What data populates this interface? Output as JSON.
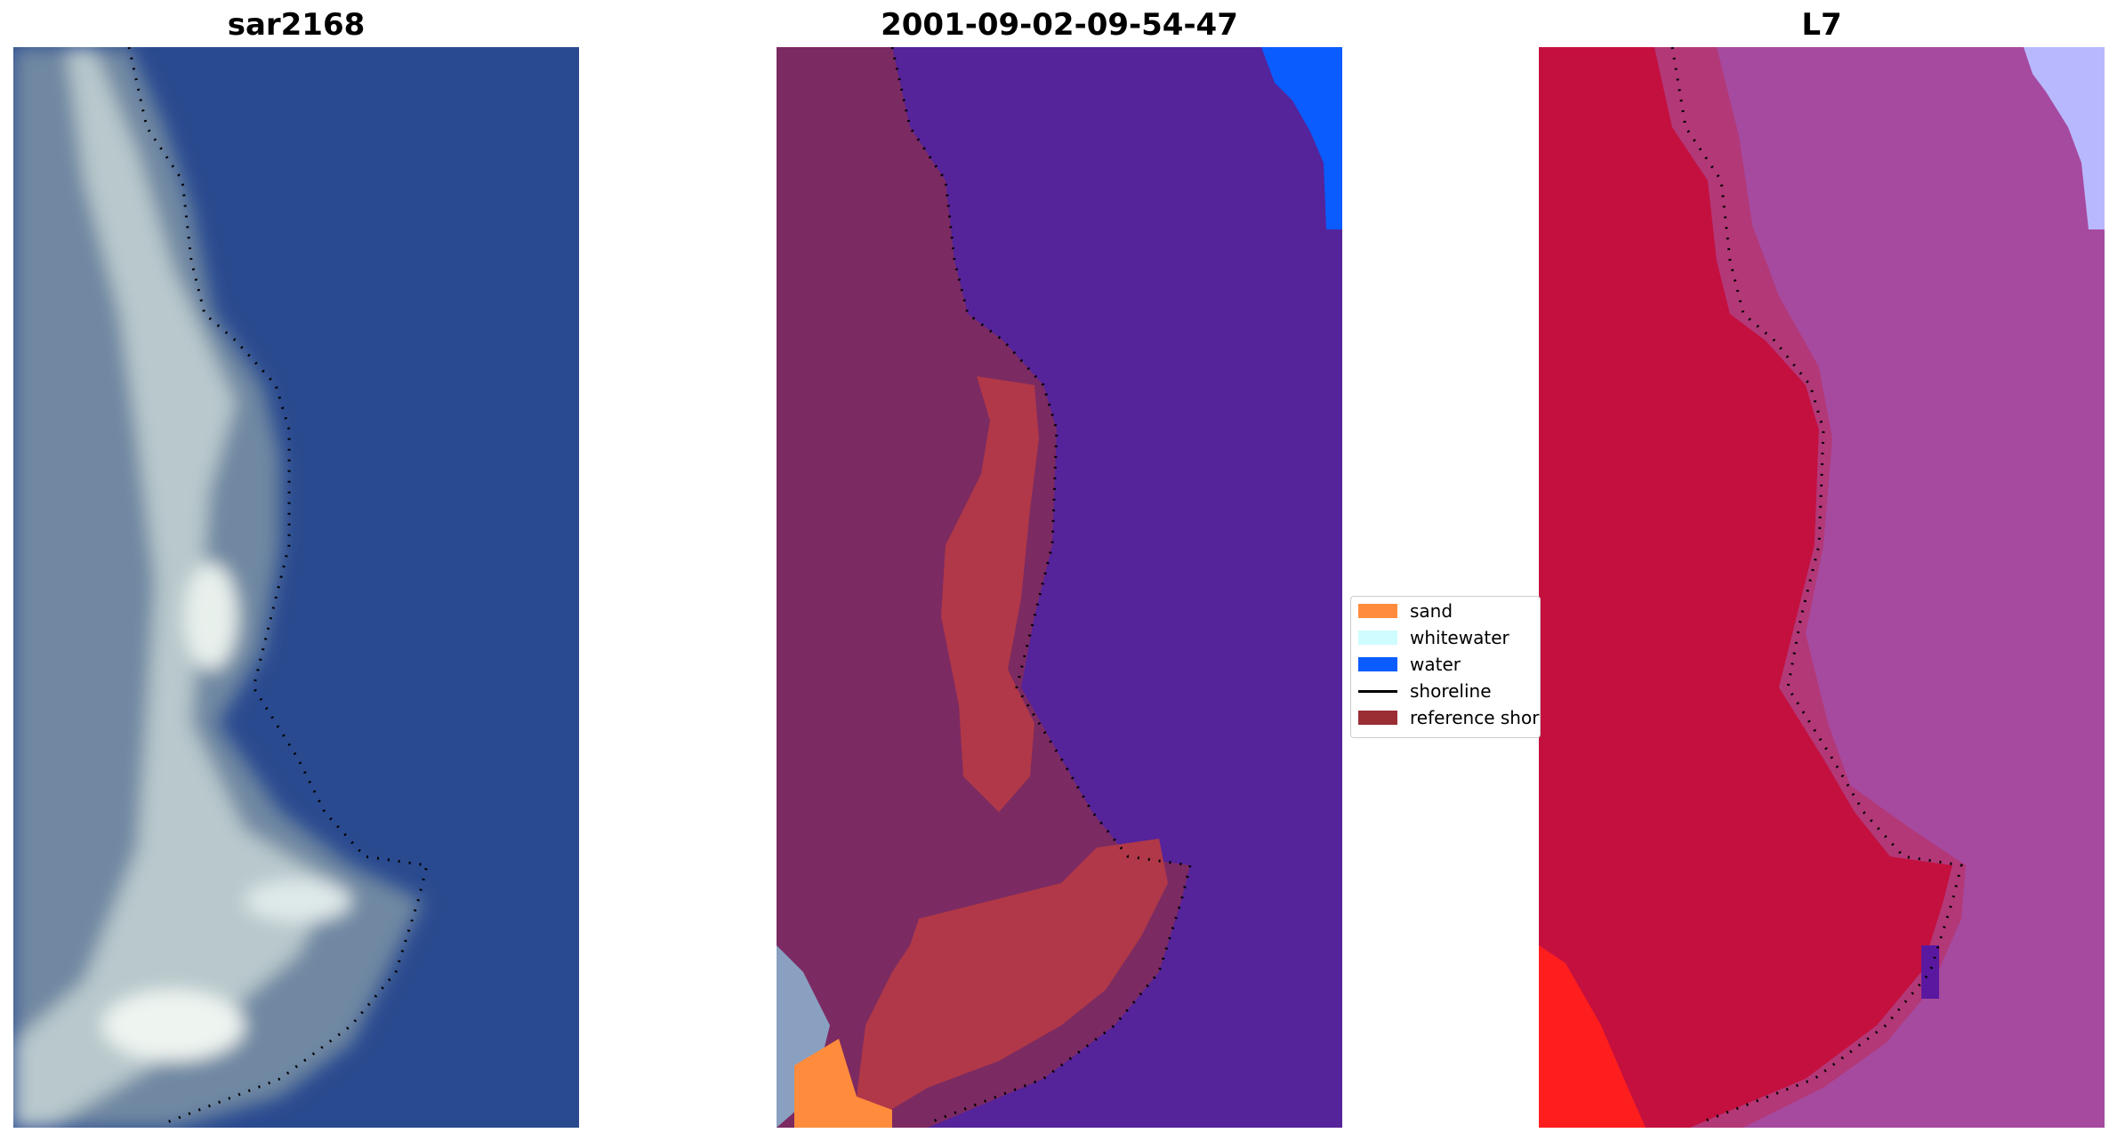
{
  "panels": [
    {
      "title": "sar2168",
      "colors": {
        "land": "#6f88a2",
        "bright": "#dfe9ea",
        "water": "#2a4a8f",
        "shoreline_dots": "#000000"
      }
    },
    {
      "title": "2001-09-02-09-54-47",
      "colors": {
        "land": "#7c2a62",
        "reference": "#b03848",
        "water": "#55239a",
        "sand": "#ff8c3c",
        "water_class": "#0a5cff",
        "gray": "#8aa0c0",
        "shoreline_dots": "#000000"
      }
    },
    {
      "title": "L7",
      "colors": {
        "land": "#c4103e",
        "offshore": "#a64a9f",
        "bright_red": "#ff1e1e",
        "lavender": "#b8b8ff",
        "shoreline_dots": "#000000"
      }
    }
  ],
  "legend": {
    "items": [
      {
        "label": "sand",
        "color": "#ff8c3c",
        "kind": "patch"
      },
      {
        "label": "whitewater",
        "color": "#cffcff",
        "kind": "patch"
      },
      {
        "label": "water",
        "color": "#0a5cff",
        "kind": "patch"
      },
      {
        "label": "shoreline",
        "color": "#000000",
        "kind": "line"
      },
      {
        "label": "reference shoreline",
        "color": "#9a2e34",
        "kind": "patch"
      }
    ]
  }
}
